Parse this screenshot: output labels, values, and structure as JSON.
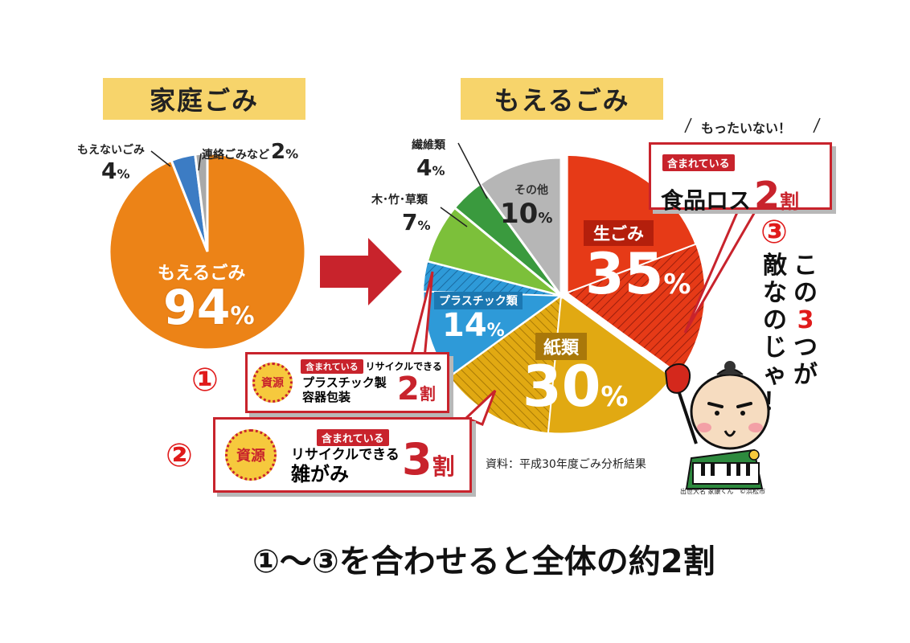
{
  "left_title": "家庭ごみ",
  "right_title": "もえるごみ",
  "colors": {
    "title_bg": "#f7d46b",
    "red": "#c8232c",
    "arrow": "#c8232c"
  },
  "chart_data": [
    {
      "type": "pie",
      "title": "家庭ごみ",
      "slices": [
        {
          "label": "もえるごみ",
          "value": 94,
          "display": "94",
          "unit": "%",
          "color": "#ec8317"
        },
        {
          "label": "もえないごみ",
          "value": 4,
          "display": "4",
          "unit": "%",
          "color": "#3c7cc4"
        },
        {
          "label": "連絡ごみなど",
          "value": 2,
          "display": "2",
          "unit": "%",
          "color": "#a9a9a9"
        }
      ]
    },
    {
      "type": "pie",
      "title": "もえるごみ",
      "slices": [
        {
          "label": "生ごみ",
          "value": 35,
          "display": "35",
          "unit": "%",
          "color": "#e63a17"
        },
        {
          "label": "紙類",
          "value": 30,
          "display": "30",
          "unit": "%",
          "color": "#e1a912"
        },
        {
          "label": "プラスチック類",
          "value": 14,
          "display": "14",
          "unit": "%",
          "color": "#2e9ad8"
        },
        {
          "label": "木･竹･草類",
          "value": 7,
          "display": "7",
          "unit": "%",
          "color": "#7cc03a"
        },
        {
          "label": "繊維類",
          "value": 4,
          "display": "4",
          "unit": "%",
          "color": "#3a9a3e"
        },
        {
          "label": "その他",
          "value": 10,
          "display": "10",
          "unit": "%",
          "color": "#b6b6b6"
        }
      ]
    }
  ],
  "mottainai": "もったいない！",
  "food_loss": {
    "tag": "含まれている",
    "text": "食品ロス",
    "num": "2",
    "unit": "割"
  },
  "plastic_callout": {
    "seal": "資源",
    "tag": "含まれている",
    "tag_suffix": "リサイクルできる",
    "line1": "プラスチック製",
    "line2": "容器包装",
    "num": "2",
    "unit": "割"
  },
  "paper_callout": {
    "seal": "資源",
    "tag": "含まれている",
    "line1": "リサイクルできる",
    "line2": "雑がみ",
    "num": "3",
    "unit": "割"
  },
  "marker1": "①",
  "marker2": "②",
  "marker3": "③",
  "enemy_pre": [
    "こ",
    "の"
  ],
  "enemy_num": "3",
  "enemy_post": [
    "つ",
    "が"
  ],
  "enemy_col1": [
    "敵",
    "な",
    "の",
    "じ",
    "ゃ",
    "！"
  ],
  "source": "資料：平成30年度ごみ分析結果",
  "mascot_name": "出世大名 家康くん",
  "mascot_credit": "©浜松市",
  "bottom_text": "①～③を合わせると全体の約2割"
}
